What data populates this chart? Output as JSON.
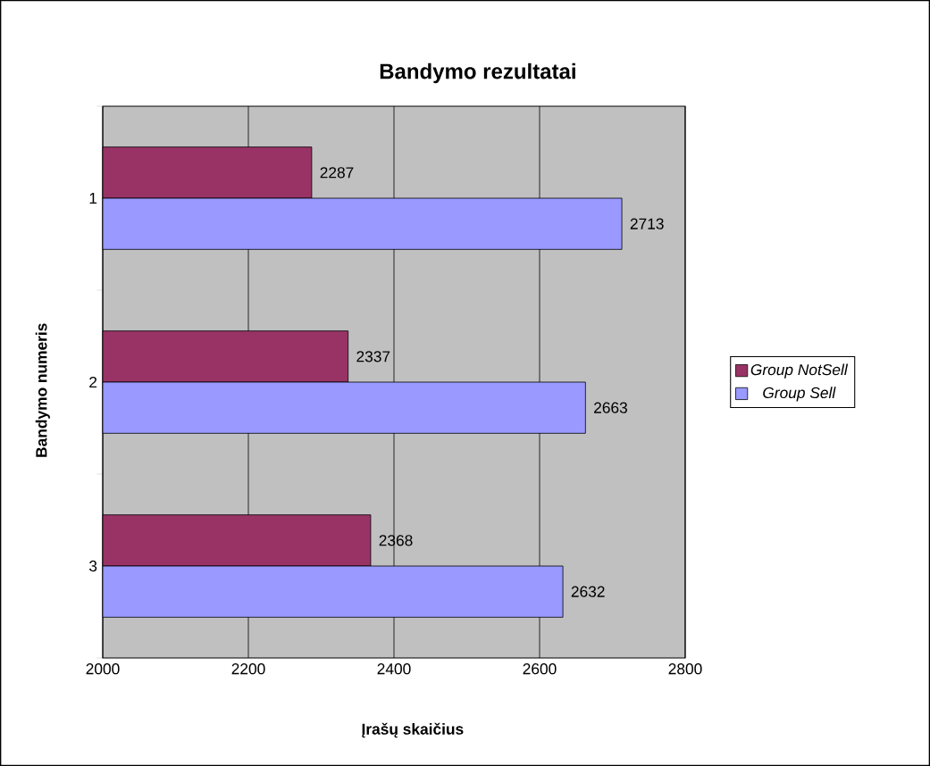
{
  "chart_data": {
    "type": "bar",
    "orientation": "horizontal",
    "title": "Bandymo rezultatai",
    "xlabel": "Įrašų skaičius",
    "ylabel": "Bandymo numeris",
    "categories": [
      "1",
      "2",
      "3"
    ],
    "series": [
      {
        "name": "Group NotSell",
        "color": "#993366",
        "values": [
          2287,
          2337,
          2368
        ]
      },
      {
        "name": "Group Sell",
        "color": "#9999ff",
        "values": [
          2713,
          2663,
          2632
        ]
      }
    ],
    "xlim": [
      2000,
      2800
    ],
    "xticks": [
      2000,
      2200,
      2400,
      2600,
      2800
    ],
    "grid": "x",
    "legend": "right",
    "data_labels": true
  }
}
